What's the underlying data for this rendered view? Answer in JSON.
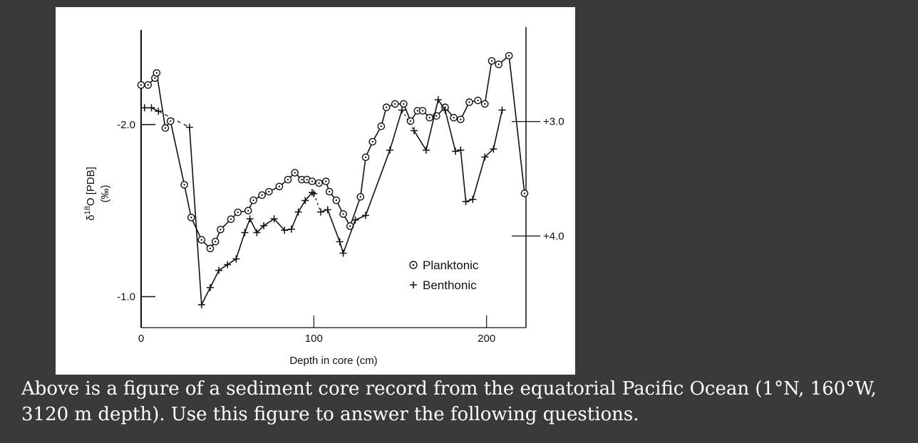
{
  "caption": {
    "line1": "Above is a figure of a sediment core record from the equatorial Pacific Ocean (1°N, 160°W,",
    "line2": "3120 m depth).   Use this figure to answer the following questions."
  },
  "chart_data": {
    "type": "line",
    "xlabel": "Depth in core (cm)",
    "ylabel": "δ18O [PDB]",
    "ylabel_unit": "(‰)",
    "x_ticks": [
      0,
      100,
      200
    ],
    "x_tick_labels": [
      "0",
      "100",
      "200"
    ],
    "xlim": [
      0,
      222
    ],
    "left_axis": {
      "ticks": [
        -2.0,
        -1.0
      ],
      "tick_labels": [
        "-2.0",
        "-1.0"
      ],
      "ylim": [
        -0.82,
        -2.55
      ],
      "series": "Planktonic"
    },
    "right_axis": {
      "ticks": [
        3.0,
        4.0
      ],
      "tick_labels": [
        "+3.0",
        "+4.0"
      ],
      "ylim": [
        2.2,
        4.8
      ],
      "series": "Benthonic"
    },
    "legend": {
      "placement": "lower-right",
      "entries": [
        {
          "label": "Planktonic",
          "marker": "circle-dot"
        },
        {
          "label": "Benthonic",
          "marker": "plus"
        }
      ]
    },
    "series": [
      {
        "name": "Planktonic",
        "axis": "left",
        "x": [
          0,
          4,
          8,
          9,
          14,
          17,
          25,
          29,
          35,
          40,
          43,
          46,
          52,
          56,
          62,
          65,
          70,
          74,
          80,
          85,
          89,
          93,
          96,
          99,
          103,
          107,
          109,
          113,
          117,
          121,
          127,
          130,
          134,
          139,
          142,
          147,
          152,
          156,
          160,
          163,
          167,
          171,
          176,
          181,
          185,
          190,
          195,
          199,
          203,
          207,
          213,
          222
        ],
        "y": [
          -2.23,
          -2.23,
          -2.27,
          -2.3,
          -1.98,
          -2.02,
          -1.65,
          -1.46,
          -1.33,
          -1.28,
          -1.32,
          -1.39,
          -1.45,
          -1.49,
          -1.5,
          -1.56,
          -1.59,
          -1.61,
          -1.64,
          -1.68,
          -1.72,
          -1.68,
          -1.68,
          -1.67,
          -1.66,
          -1.67,
          -1.61,
          -1.56,
          -1.48,
          -1.41,
          -1.58,
          -1.81,
          -1.9,
          -1.99,
          -2.1,
          -2.12,
          -2.12,
          -2.02,
          -2.08,
          -2.08,
          -2.04,
          -2.05,
          -2.1,
          -2.04,
          -2.03,
          -2.13,
          -2.14,
          -2.12,
          -2.37,
          -2.35,
          -2.4,
          -1.6
        ]
      },
      {
        "name": "Benthonic",
        "axis": "right",
        "x": [
          2,
          6,
          10,
          28,
          35,
          40,
          45,
          50,
          55,
          60,
          63,
          67,
          71,
          77,
          83,
          87,
          91,
          95,
          99,
          100,
          104,
          108,
          115,
          117,
          124,
          130,
          144,
          151,
          158,
          165,
          172,
          176,
          182,
          185,
          188,
          192,
          199,
          204,
          209
        ],
        "y": [
          2.88,
          2.88,
          2.91,
          3.05,
          4.6,
          4.45,
          4.3,
          4.25,
          4.2,
          3.97,
          3.85,
          3.97,
          3.91,
          3.85,
          3.95,
          3.94,
          3.79,
          3.69,
          3.62,
          3.63,
          3.79,
          3.77,
          4.05,
          4.15,
          3.86,
          3.82,
          3.25,
          2.9,
          3.08,
          3.25,
          2.81,
          2.9,
          3.26,
          3.25,
          3.7,
          3.68,
          3.31,
          3.24,
          2.9
        ]
      }
    ],
    "dashed_segments_note": "gaps drawn with dashed/dotted lines"
  }
}
